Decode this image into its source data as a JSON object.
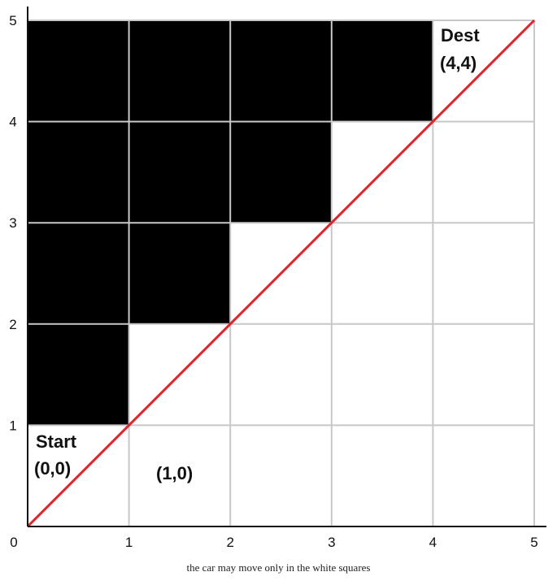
{
  "grid": {
    "size": 5,
    "x_ticks": [
      "0",
      "1",
      "2",
      "3",
      "4",
      "5"
    ],
    "y_ticks": [
      "1",
      "2",
      "3",
      "4",
      "5"
    ],
    "blocked_cells": [
      {
        "col": 0,
        "row": 4
      },
      {
        "col": 1,
        "row": 4
      },
      {
        "col": 2,
        "row": 4
      },
      {
        "col": 3,
        "row": 4
      },
      {
        "col": 0,
        "row": 3
      },
      {
        "col": 1,
        "row": 3
      },
      {
        "col": 2,
        "row": 3
      },
      {
        "col": 0,
        "row": 2
      },
      {
        "col": 1,
        "row": 2
      },
      {
        "col": 0,
        "row": 1
      }
    ],
    "diagonal": {
      "from": [
        0,
        0
      ],
      "to": [
        5,
        5
      ]
    }
  },
  "labels": {
    "start_title": "Start",
    "start_coord": "(0,0)",
    "dest_title": "Dest",
    "dest_coord": "(4,4)",
    "cell_1_0": "(1,0)"
  },
  "caption": "the car may move only in the white squares",
  "colors": {
    "blocked": "#000000",
    "grid_line": "#c8c8c8",
    "axis": "#111111",
    "diagonal": "#e8202a"
  }
}
